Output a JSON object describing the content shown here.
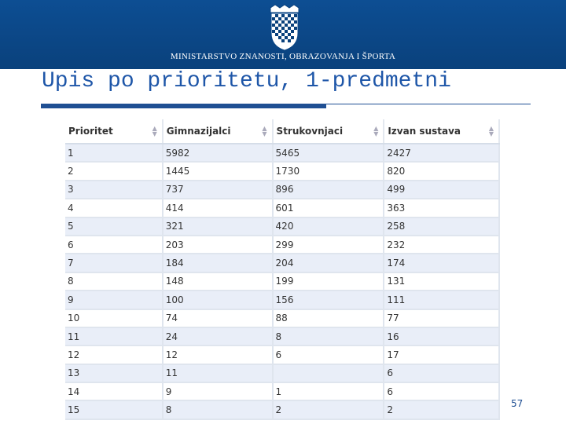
{
  "header": {
    "ministry": "MINISTARSTVO ZNANOSTI, OBRAZOVANJA I ŠPORTA"
  },
  "title": "Upis po prioritetu, 1-predmetni",
  "table": {
    "columns": [
      "Prioritet",
      "Gimnazijalci",
      "Strukovnjaci",
      "Izvan sustava"
    ],
    "rows": [
      [
        1,
        5982,
        5465,
        2427
      ],
      [
        2,
        1445,
        1730,
        820
      ],
      [
        3,
        737,
        896,
        499
      ],
      [
        4,
        414,
        601,
        363
      ],
      [
        5,
        321,
        420,
        258
      ],
      [
        6,
        203,
        299,
        232
      ],
      [
        7,
        184,
        204,
        174
      ],
      [
        8,
        148,
        199,
        131
      ],
      [
        9,
        100,
        156,
        111
      ],
      [
        10,
        74,
        88,
        77
      ],
      [
        11,
        24,
        8,
        16
      ],
      [
        12,
        12,
        6,
        17
      ],
      [
        13,
        11,
        null,
        6
      ],
      [
        14,
        9,
        1,
        6
      ],
      [
        15,
        8,
        2,
        2
      ]
    ]
  },
  "page_number": 57
}
